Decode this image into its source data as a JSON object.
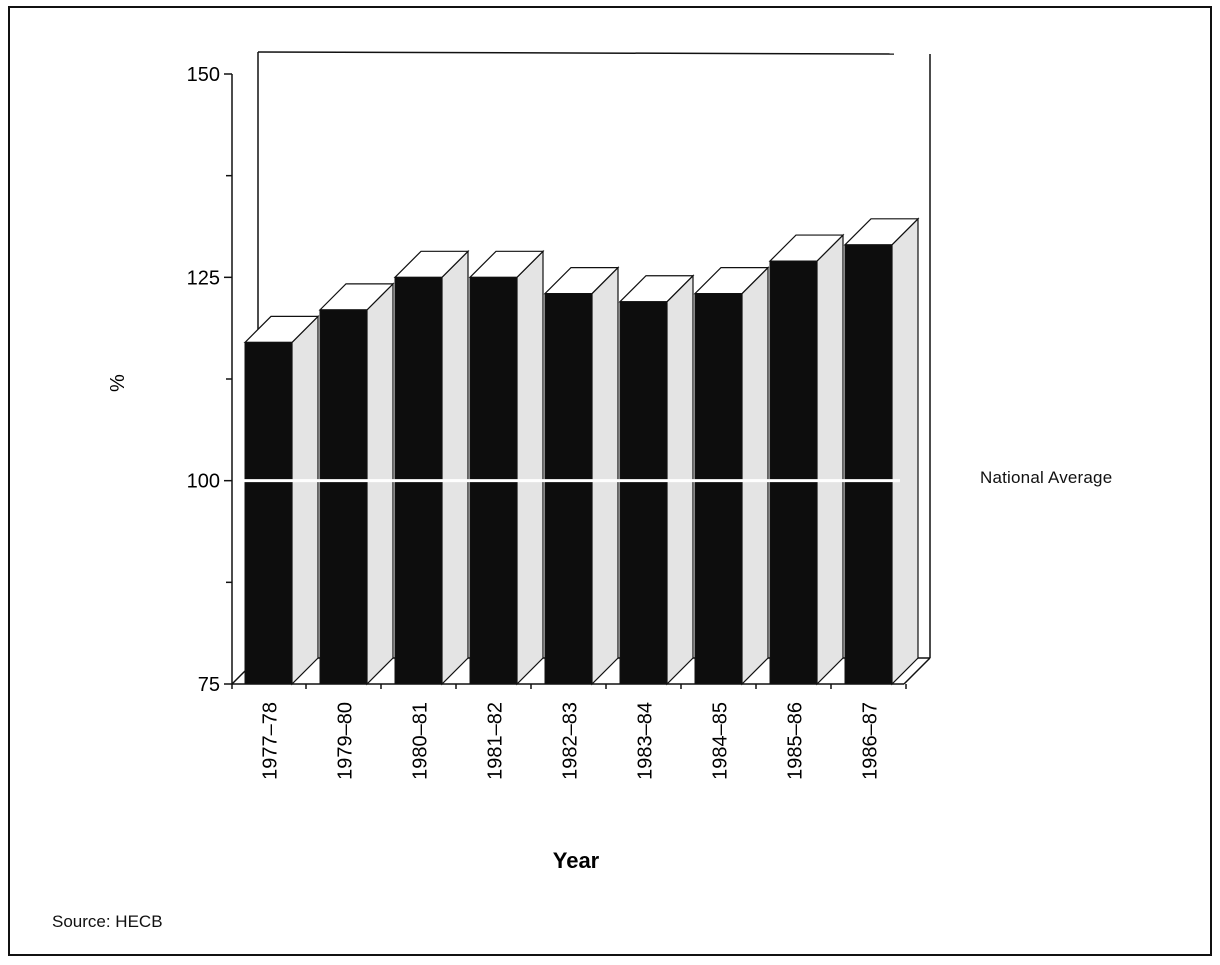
{
  "chart_data": {
    "type": "bar",
    "title": "",
    "xlabel": "Year",
    "ylabel": "%",
    "ylim": [
      75,
      150
    ],
    "yticks": [
      75,
      100,
      125,
      150
    ],
    "categories": [
      "1977–78",
      "1979–80",
      "1980–81",
      "1981–82",
      "1982–83",
      "1983–84",
      "1984–85",
      "1985–86",
      "1986–87"
    ],
    "values": [
      117,
      121,
      125,
      125,
      123,
      122,
      123,
      127,
      129
    ],
    "reference_line": {
      "value": 100,
      "label": "National Average"
    },
    "grid": false,
    "style": "3d"
  },
  "source": "Source:  HECB",
  "colors": {
    "bar_front": "#0d0d0d",
    "bar_side": "#e4e4e4",
    "bar_top": "#ffffff",
    "reference_line": "#ffffff"
  }
}
